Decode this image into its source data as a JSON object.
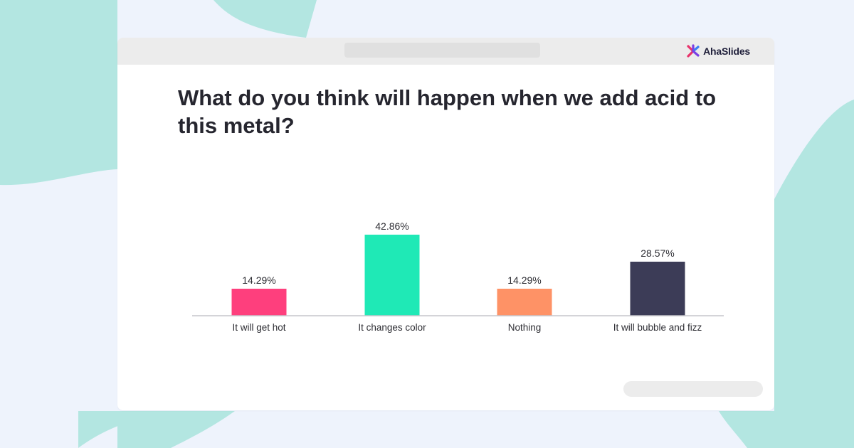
{
  "brand": {
    "name": "AhaSlides",
    "colors": [
      "#e8336b",
      "#7b3fe4",
      "#3b7cf4"
    ]
  },
  "question": {
    "text": "What do you think will happen when we add acid to this metal?"
  },
  "chart_data": {
    "type": "bar",
    "categories": [
      "It will get hot",
      "It changes color",
      "Nothing",
      "It will bubble and fizz"
    ],
    "values": [
      14.29,
      42.86,
      14.29,
      28.57
    ],
    "value_labels": [
      "14.29%",
      "42.86%",
      "14.29%",
      "28.57%"
    ],
    "colors": [
      "#fe3f7d",
      "#1fe9b6",
      "#fe9266",
      "#3c3c57"
    ],
    "ylim": [
      0,
      42.86
    ],
    "grid": false,
    "legend": "none"
  }
}
